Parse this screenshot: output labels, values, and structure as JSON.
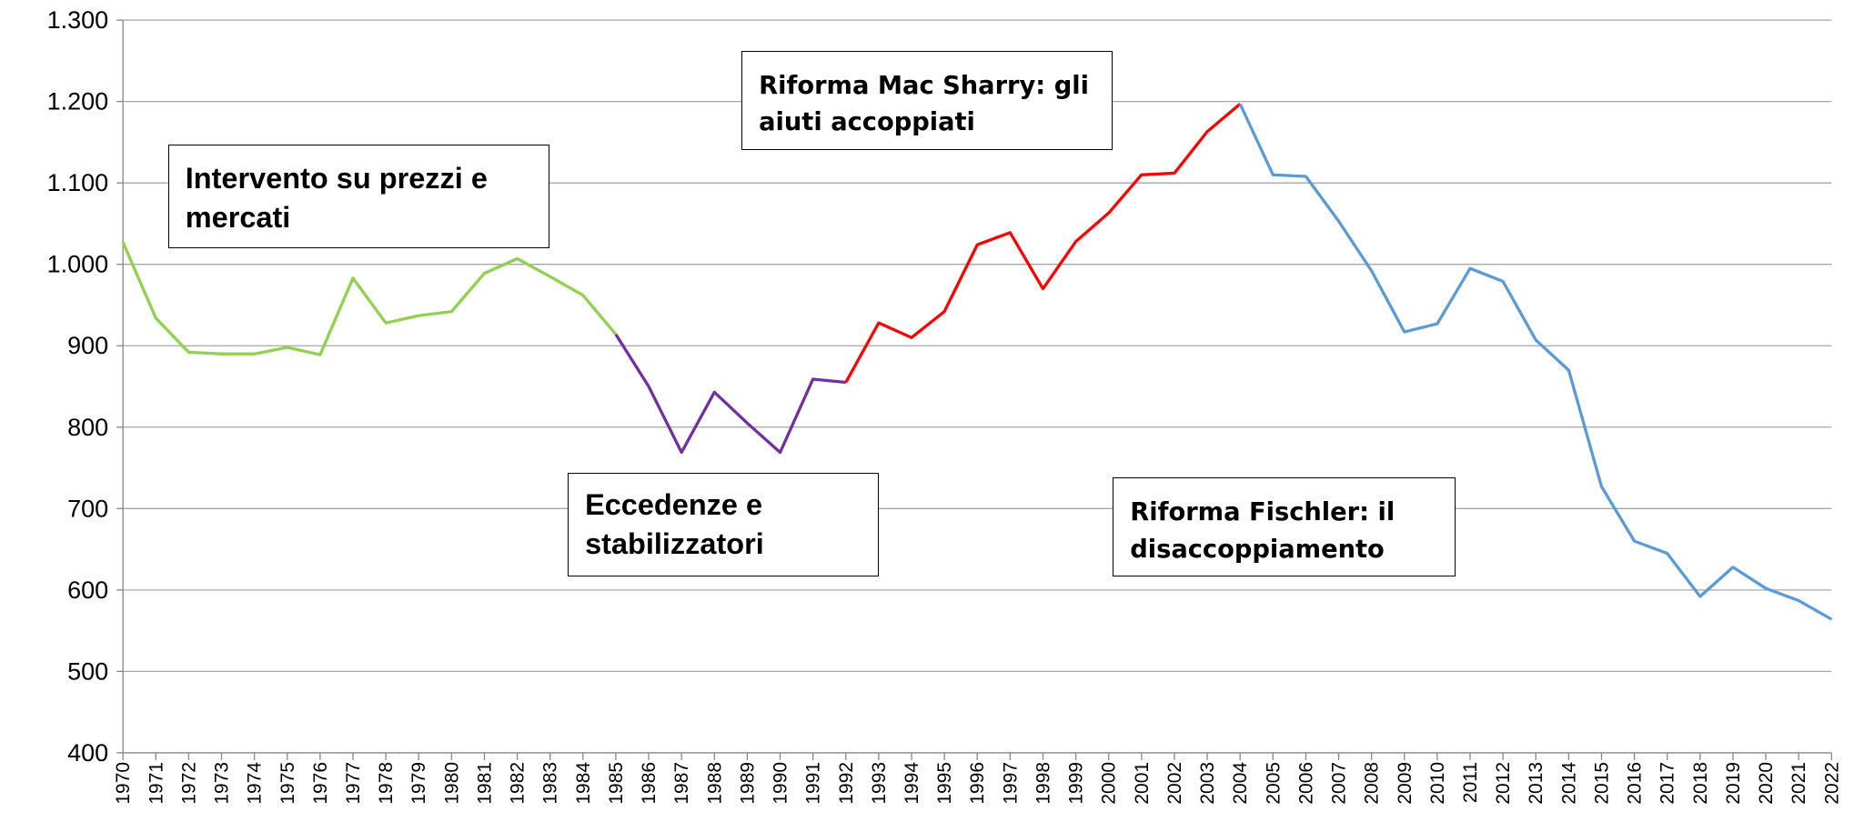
{
  "chart_data": {
    "type": "line",
    "categories": [
      "1970",
      "1971",
      "1972",
      "1973",
      "1974",
      "1975",
      "1976",
      "1977",
      "1978",
      "1979",
      "1980",
      "1981",
      "1982",
      "1983",
      "1984",
      "1985",
      "1986",
      "1987",
      "1988",
      "1989",
      "1990",
      "1991",
      "1992",
      "1993",
      "1994",
      "1995",
      "1996",
      "1997",
      "1998",
      "1999",
      "2000",
      "2001",
      "2002",
      "2003",
      "2004",
      "2005",
      "2006",
      "2007",
      "2008",
      "2009",
      "2010",
      "2011",
      "2012",
      "2013",
      "2014",
      "2015",
      "2016",
      "2017",
      "2018",
      "2019",
      "2020",
      "2021",
      "2022"
    ],
    "series": [
      {
        "color": "#92d050",
        "values": [
          1027,
          934,
          892,
          890,
          890,
          898,
          889,
          983,
          928,
          937,
          942,
          989,
          1007,
          985,
          962,
          914,
          null,
          null,
          null,
          null,
          null,
          null,
          null,
          null,
          null,
          null,
          null,
          null,
          null,
          null,
          null,
          null,
          null,
          null,
          null,
          null,
          null,
          null,
          null,
          null,
          null,
          null,
          null,
          null,
          null,
          null,
          null,
          null,
          null,
          null,
          null,
          null,
          null
        ]
      },
      {
        "color": "#7030a0",
        "values": [
          null,
          null,
          null,
          null,
          null,
          null,
          null,
          null,
          null,
          null,
          null,
          null,
          null,
          null,
          null,
          914,
          850,
          769,
          843,
          805,
          769,
          859,
          855,
          null,
          null,
          null,
          null,
          null,
          null,
          null,
          null,
          null,
          null,
          null,
          null,
          null,
          null,
          null,
          null,
          null,
          null,
          null,
          null,
          null,
          null,
          null,
          null,
          null,
          null,
          null,
          null,
          null,
          null
        ]
      },
      {
        "color": "#ff0000",
        "values": [
          null,
          null,
          null,
          null,
          null,
          null,
          null,
          null,
          null,
          null,
          null,
          null,
          null,
          null,
          null,
          null,
          null,
          null,
          null,
          null,
          null,
          null,
          855,
          928,
          910,
          942,
          1024,
          1039,
          970,
          1028,
          1063,
          1110,
          1112,
          1163,
          1197,
          null,
          null,
          null,
          null,
          null,
          null,
          null,
          null,
          null,
          null,
          null,
          null,
          null,
          null,
          null,
          null,
          null,
          null
        ]
      },
      {
        "color": "#5b9bd5",
        "values": [
          null,
          null,
          null,
          null,
          null,
          null,
          null,
          null,
          null,
          null,
          null,
          null,
          null,
          null,
          null,
          null,
          null,
          null,
          null,
          null,
          null,
          null,
          null,
          null,
          null,
          null,
          null,
          null,
          null,
          null,
          null,
          null,
          null,
          null,
          1197,
          1110,
          1108,
          1053,
          992,
          917,
          927,
          995,
          979,
          907,
          870,
          727,
          660,
          645,
          592,
          628,
          602,
          587,
          564
        ]
      }
    ],
    "ylim": [
      400,
      1300
    ],
    "yticks": [
      400,
      500,
      600,
      700,
      800,
      900,
      {
        "value": 1000,
        "label": "1.000"
      },
      {
        "value": 1100,
        "label": "1.100"
      },
      {
        "value": 1200,
        "label": "1.200"
      },
      {
        "value": 1300,
        "label": "1.300"
      }
    ],
    "grid": true,
    "annotations": [
      {
        "text": "Intervento su prezzi e mercati"
      },
      {
        "text": "Riforma Mac Sharry: gli aiuti accoppiati"
      },
      {
        "text": "Eccedenze e stabilizzatori"
      },
      {
        "text": "Riforma Fischler: il disaccoppiamento"
      }
    ]
  }
}
